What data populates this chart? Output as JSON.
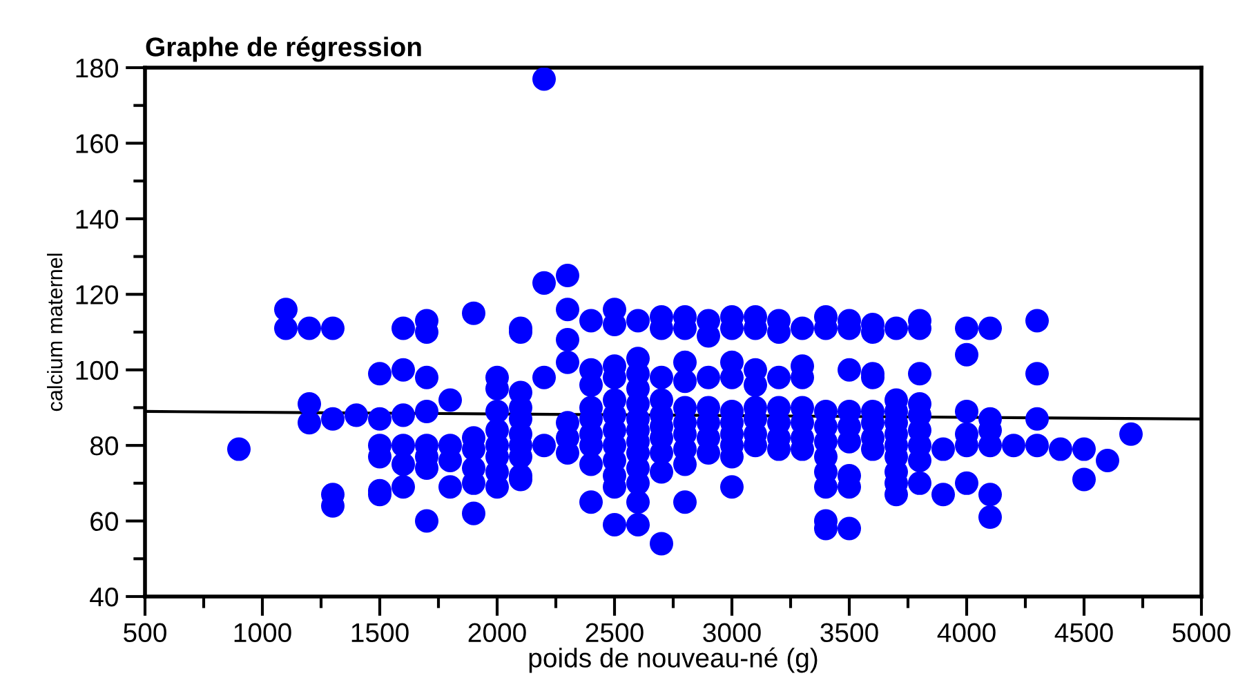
{
  "chart_data": {
    "type": "scatter",
    "title": "Graphe de régression",
    "xlabel": "poids de nouveau-né (g)",
    "ylabel": "calcium maternel",
    "xlim": [
      500,
      5000
    ],
    "xticks": [
      500,
      1000,
      1500,
      2000,
      2500,
      3000,
      3500,
      4000,
      4500,
      5000
    ],
    "ylim": [
      40,
      180
    ],
    "yticks": [
      40,
      60,
      80,
      100,
      120,
      140,
      160,
      180
    ],
    "grid": false,
    "legend": false,
    "series": [
      {
        "color": "#0000ff",
        "marker": "circle",
        "x": [
          900,
          1100,
          1100,
          1200,
          1200,
          1200,
          1300,
          1300,
          1300,
          1300,
          1400,
          1500,
          1500,
          1500,
          1500,
          1500,
          1500,
          1600,
          1600,
          1600,
          1600,
          1600,
          1600,
          1700,
          1700,
          1700,
          1700,
          1700,
          1700,
          1700,
          1700,
          1800,
          1800,
          1800,
          1800,
          1900,
          1900,
          1900,
          1900,
          1900,
          1900,
          2000,
          2000,
          2000,
          2000,
          2000,
          2000,
          2000,
          2000,
          2100,
          2100,
          2100,
          2100,
          2100,
          2100,
          2100,
          2100,
          2100,
          2100,
          2200,
          2200,
          2200,
          2200,
          2300,
          2300,
          2300,
          2300,
          2300,
          2300,
          2300,
          2400,
          2400,
          2400,
          2400,
          2400,
          2400,
          2400,
          2400,
          2400,
          2500,
          2500,
          2500,
          2500,
          2500,
          2500,
          2500,
          2500,
          2500,
          2500,
          2500,
          2500,
          2600,
          2600,
          2600,
          2600,
          2600,
          2600,
          2600,
          2600,
          2600,
          2600,
          2600,
          2600,
          2600,
          2700,
          2700,
          2700,
          2700,
          2700,
          2700,
          2700,
          2700,
          2700,
          2700,
          2800,
          2800,
          2800,
          2800,
          2800,
          2800,
          2800,
          2800,
          2800,
          2800,
          2900,
          2900,
          2900,
          2900,
          2900,
          2900,
          2900,
          3000,
          3000,
          3000,
          3000,
          3000,
          3000,
          3000,
          3000,
          3000,
          3000,
          3100,
          3100,
          3100,
          3100,
          3100,
          3100,
          3100,
          3100,
          3200,
          3200,
          3200,
          3200,
          3200,
          3200,
          3200,
          3300,
          3300,
          3300,
          3300,
          3300,
          3300,
          3300,
          3400,
          3400,
          3400,
          3400,
          3400,
          3400,
          3400,
          3400,
          3400,
          3400,
          3500,
          3500,
          3500,
          3500,
          3500,
          3500,
          3500,
          3500,
          3500,
          3600,
          3600,
          3600,
          3600,
          3600,
          3600,
          3600,
          3600,
          3700,
          3700,
          3700,
          3700,
          3700,
          3700,
          3700,
          3700,
          3700,
          3700,
          3800,
          3800,
          3800,
          3800,
          3800,
          3800,
          3800,
          3800,
          3800,
          3900,
          3900,
          4000,
          4000,
          4000,
          4000,
          4000,
          4000,
          4100,
          4100,
          4100,
          4100,
          4100,
          4100,
          4200,
          4300,
          4300,
          4300,
          4300,
          4400,
          4500,
          4500,
          4600,
          4700
        ],
        "values": [
          79,
          116,
          111,
          111,
          91,
          86,
          111,
          87,
          67,
          64,
          88,
          99,
          87,
          80,
          77,
          68,
          67,
          111,
          100,
          88,
          80,
          75,
          69,
          113,
          110,
          98,
          89,
          80,
          77,
          74,
          60,
          92,
          80,
          76,
          69,
          115,
          82,
          79,
          74,
          70,
          62,
          98,
          95,
          89,
          84,
          80,
          77,
          73,
          69,
          111,
          110,
          94,
          90,
          87,
          83,
          80,
          77,
          72,
          71,
          177,
          123,
          98,
          80,
          125,
          116,
          108,
          102,
          86,
          82,
          78,
          113,
          100,
          96,
          90,
          87,
          83,
          80,
          75,
          65,
          116,
          112,
          101,
          98,
          92,
          88,
          84,
          80,
          76,
          72,
          69,
          59,
          113,
          103,
          99,
          95,
          91,
          87,
          84,
          81,
          78,
          74,
          70,
          65,
          59,
          114,
          111,
          98,
          92,
          88,
          85,
          82,
          78,
          73,
          54,
          114,
          111,
          102,
          97,
          90,
          86,
          83,
          79,
          75,
          65,
          113,
          109,
          98,
          90,
          86,
          82,
          78,
          114,
          111,
          102,
          98,
          89,
          86,
          83,
          80,
          77,
          69,
          114,
          111,
          100,
          96,
          90,
          87,
          83,
          80,
          113,
          110,
          98,
          90,
          86,
          82,
          79,
          111,
          101,
          98,
          90,
          86,
          82,
          79,
          114,
          111,
          89,
          85,
          81,
          77,
          73,
          69,
          60,
          58,
          113,
          111,
          100,
          89,
          85,
          81,
          72,
          69,
          58,
          112,
          110,
          99,
          98,
          89,
          86,
          82,
          79,
          111,
          92,
          89,
          86,
          83,
          80,
          77,
          73,
          70,
          67,
          113,
          111,
          99,
          91,
          88,
          84,
          80,
          76,
          70,
          79,
          67,
          111,
          104,
          89,
          83,
          80,
          70,
          111,
          87,
          84,
          80,
          67,
          61,
          80,
          113,
          99,
          87,
          80,
          79,
          79,
          71,
          76,
          83
        ]
      },
      {
        "type": "line",
        "color": "#000000",
        "marker": "none",
        "line_style": "solid",
        "x": [
          500,
          5000
        ],
        "values": [
          89,
          87
        ]
      }
    ]
  }
}
